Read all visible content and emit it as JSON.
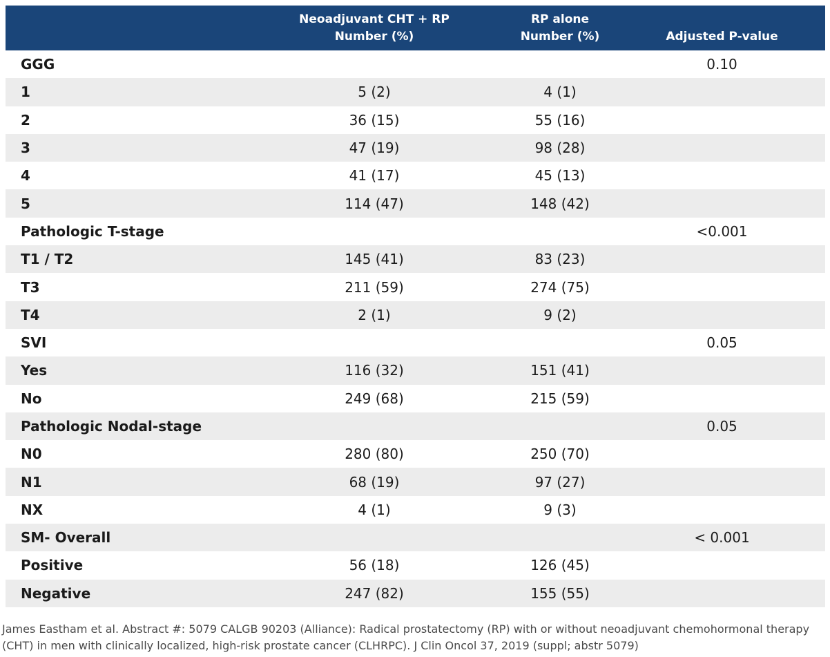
{
  "header": {
    "col1_line1": "Neoadjuvant CHT + RP",
    "col1_line2": "Number (%)",
    "col2_line1": "RP alone",
    "col2_line2": "Number (%)",
    "col3": "Adjusted P-value"
  },
  "rows": [
    {
      "label": "GGG",
      "a": "",
      "b": "",
      "p": "0.10"
    },
    {
      "label": "1",
      "a": "5 (2)",
      "b": "4 (1)",
      "p": ""
    },
    {
      "label": "2",
      "a": "36 (15)",
      "b": "55 (16)",
      "p": ""
    },
    {
      "label": "3",
      "a": "47 (19)",
      "b": "98 (28)",
      "p": ""
    },
    {
      "label": "4",
      "a": "41 (17)",
      "b": "45 (13)",
      "p": ""
    },
    {
      "label": "5",
      "a": "114 (47)",
      "b": "148 (42)",
      "p": ""
    },
    {
      "label": "Pathologic T-stage",
      "a": "",
      "b": "",
      "p": "<0.001"
    },
    {
      "label": "T1 / T2",
      "a": "145 (41)",
      "b": "83 (23)",
      "p": ""
    },
    {
      "label": "T3",
      "a": "211 (59)",
      "b": "274 (75)",
      "p": ""
    },
    {
      "label": "T4",
      "a": "2 (1)",
      "b": "9 (2)",
      "p": ""
    },
    {
      "label": "SVI",
      "a": "",
      "b": "",
      "p": "0.05"
    },
    {
      "label": "Yes",
      "a": "116 (32)",
      "b": "151 (41)",
      "p": ""
    },
    {
      "label": "No",
      "a": "249 (68)",
      "b": "215 (59)",
      "p": ""
    },
    {
      "label": "Pathologic Nodal-stage",
      "a": "",
      "b": "",
      "p": "0.05"
    },
    {
      "label": "N0",
      "a": "280 (80)",
      "b": "250 (70)",
      "p": ""
    },
    {
      "label": "N1",
      "a": "68 (19)",
      "b": "97 (27)",
      "p": ""
    },
    {
      "label": "NX",
      "a": "4 (1)",
      "b": "9 (3)",
      "p": ""
    },
    {
      "label": "SM- Overall",
      "a": "",
      "b": "",
      "p": "< 0.001"
    },
    {
      "label": "Positive",
      "a": "56 (18)",
      "b": "126 (45)",
      "p": ""
    },
    {
      "label": "Negative",
      "a": "247 (82)",
      "b": "155 (55)",
      "p": ""
    }
  ],
  "footnote": "James Eastham et al. Abstract #: 5079 CALGB 90203 (Alliance): Radical prostatectomy (RP) with or without neoadjuvant chemohormonal therapy (CHT) in men with clinically localized, high-risk prostate cancer (CLHRPC). J Clin Oncol 37, 2019 (suppl; abstr 5079)",
  "colors": {
    "header_bg": "#1a4579",
    "stripe_bg": "#ececec"
  }
}
